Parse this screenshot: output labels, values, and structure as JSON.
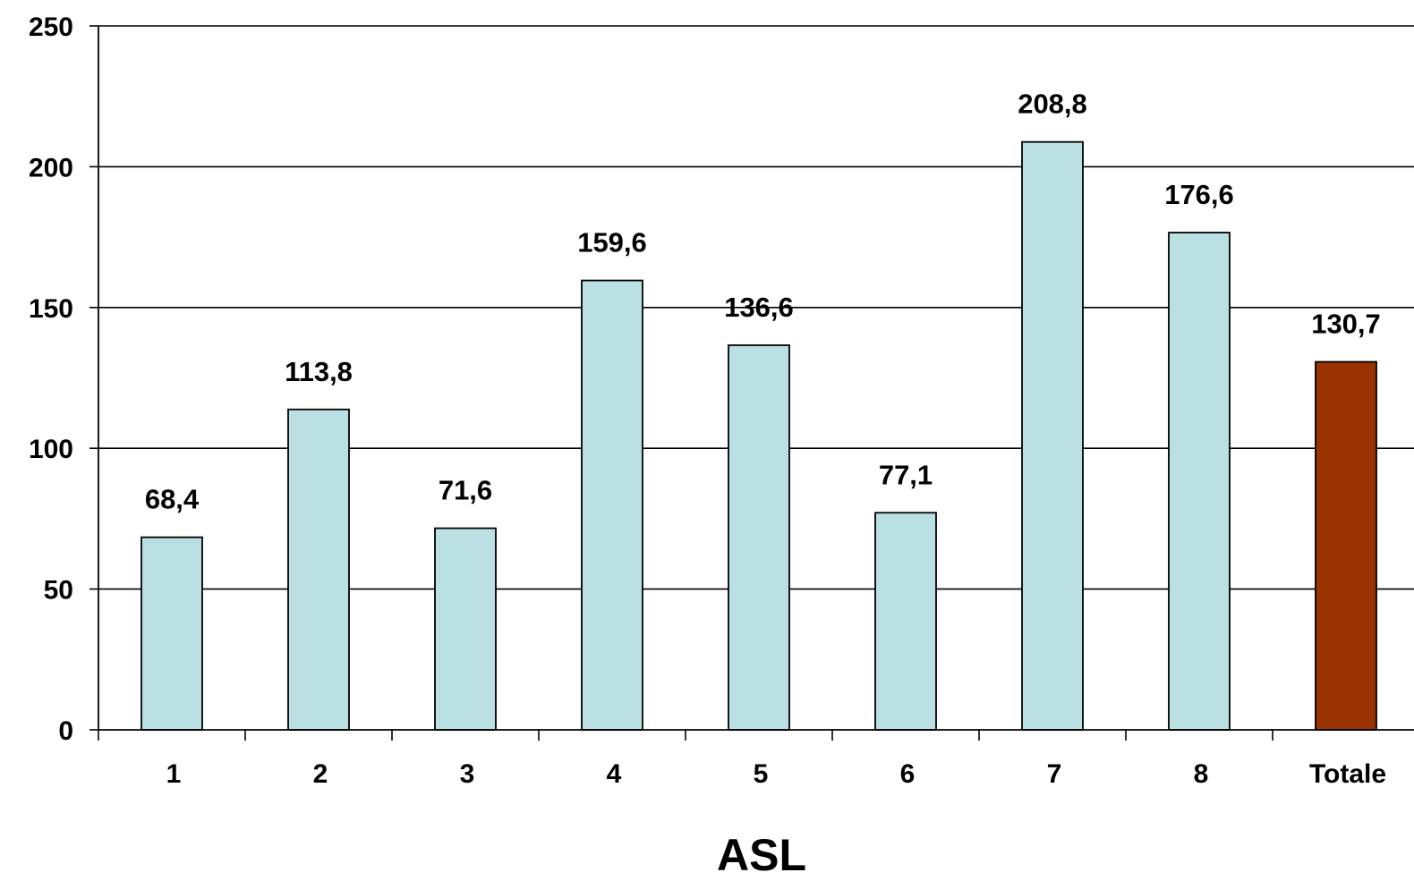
{
  "chart_data": {
    "type": "bar",
    "title": "",
    "xlabel": "ASL",
    "ylabel": "",
    "ylim": [
      0,
      250
    ],
    "yticks": [
      0,
      50,
      100,
      150,
      200,
      250
    ],
    "grid": true,
    "legend": "none",
    "categories": [
      "1",
      "2",
      "3",
      "4",
      "5",
      "6",
      "7",
      "8",
      "Totale"
    ],
    "values": [
      68.4,
      113.8,
      71.6,
      159.6,
      136.6,
      77.1,
      208.8,
      176.6,
      130.7
    ],
    "data_labels": [
      "68,4",
      "113,8",
      "71,6",
      "159,6",
      "136,6",
      "77,1",
      "208,8",
      "176,6",
      "130,7"
    ],
    "colors": {
      "bar": "#BBE0E3",
      "highlight_bar": "#993300",
      "bar_outline": "#000000",
      "grid": "#000000"
    },
    "highlight_category": "Totale"
  }
}
